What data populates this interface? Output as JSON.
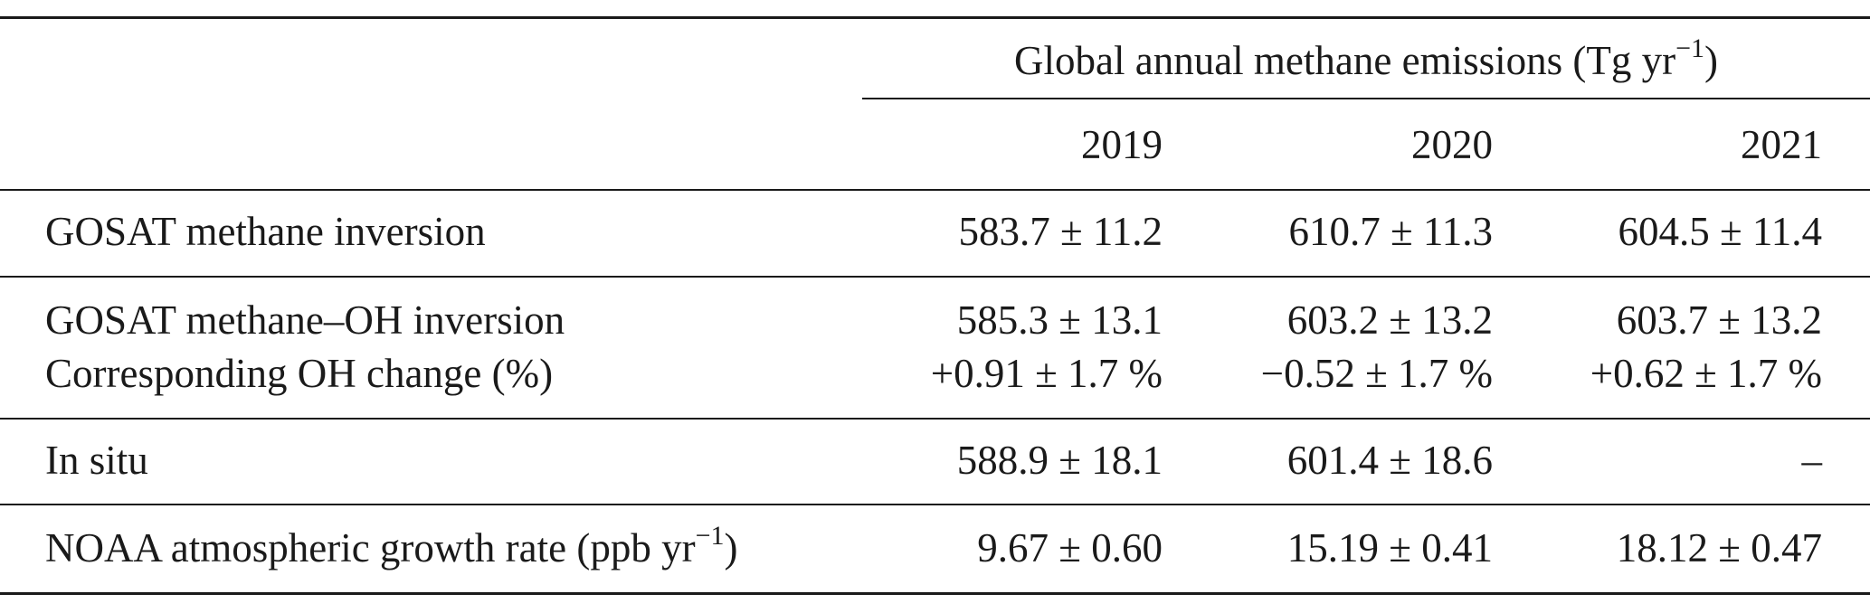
{
  "table": {
    "group_header": "Global annual methane emissions (Tg yr",
    "group_header_sup": "−1",
    "group_header_end": ")",
    "years": [
      "2019",
      "2020",
      "2021"
    ],
    "rows": [
      {
        "label": "GOSAT methane inversion",
        "values": [
          "583.7 ± 11.2",
          "610.7 ± 11.3",
          "604.5 ± 11.4"
        ]
      },
      {
        "label": "GOSAT methane–OH inversion",
        "values": [
          "585.3 ± 13.1",
          "603.2 ± 13.2",
          "603.7 ± 13.2"
        ]
      },
      {
        "label": "Corresponding OH change (%)",
        "values": [
          "+0.91 ± 1.7 %",
          "−0.52 ± 1.7 %",
          "+0.62 ± 1.7 %"
        ]
      },
      {
        "label": "In situ",
        "values": [
          "588.9 ± 18.1",
          "601.4 ± 18.6",
          "–"
        ]
      },
      {
        "label": "NOAA atmospheric growth rate (ppb yr",
        "label_sup": "−1",
        "label_end": ")",
        "values": [
          "9.67 ± 0.60",
          "15.19 ± 0.41",
          "18.12 ± 0.47"
        ]
      }
    ]
  }
}
